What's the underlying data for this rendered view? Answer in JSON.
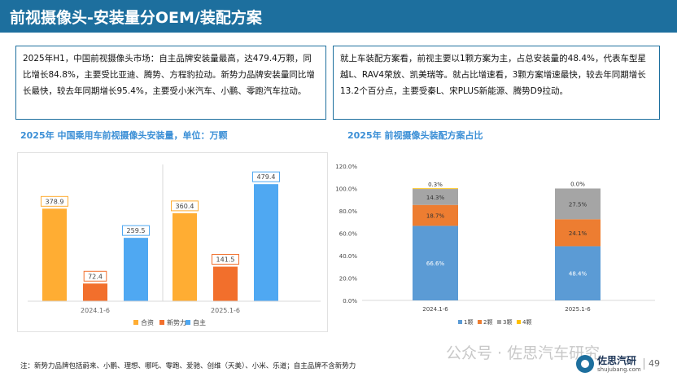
{
  "header": {
    "title": "前视摄像头-安装量分OEM/装配方案"
  },
  "summary_left": "2025年H1，中国前视摄像头市场：自主品牌安装量最高，达479.4万颗，同比增长84.8%，主要受比亚迪、腾势、方程豹拉动。新势力品牌安装量同比增长最快，较去年同期增长95.4%，主要受小米汽车、小鹏、零跑汽车拉动。",
  "summary_right": "就上车装配方案看，前视主要以1颗方案为主，占总安装量的48.4%，代表车型星越L、RAV4荣放、凯美瑞等。就占比增速看，3颗方案增速最快，较去年同期增长13.2个百分点，主要受秦L、宋PLUS新能源、腾势D9拉动。",
  "footnote": "注：新势力品牌包括蔚来、小鹏、理想、哪吒、零跑、爱驰、创维（天美）、小米、乐道；自主品牌不含新势力",
  "watermark": "公众号 · 佐思汽车研究",
  "logo": {
    "name": "佐思汽研",
    "url": "shujubang.com"
  },
  "page_number": "49",
  "colors": {
    "header": "#1d6f9e",
    "title_blue": "#3b8fd6",
    "orange_light": "#ffad33",
    "orange": "#f26f2c",
    "blue": "#4fa8f2",
    "stack1": "#5b9bd5",
    "stack2": "#ed7d31",
    "stack3": "#a5a5a5",
    "stack4": "#ffc000"
  },
  "chart_data": [
    {
      "type": "bar",
      "title": "2025年 中国乘用车前视摄像头安装量，单位：万颗",
      "categories": [
        "2024.1-6",
        "2025.1-6"
      ],
      "series": [
        {
          "name": "合资",
          "values": [
            378.9,
            360.4
          ]
        },
        {
          "name": "新势力",
          "values": [
            72.4,
            141.5
          ]
        },
        {
          "name": "自主",
          "values": [
            259.5,
            479.4
          ]
        }
      ],
      "legend": "bottom",
      "grid": false
    },
    {
      "type": "bar",
      "stacked": true,
      "title": "2025年 前视摄像头装配方案占比",
      "categories": [
        "2024.1-6",
        "2025.1-6"
      ],
      "series": [
        {
          "name": "1颗",
          "values": [
            66.6,
            48.4
          ]
        },
        {
          "name": "2颗",
          "values": [
            18.7,
            24.1
          ]
        },
        {
          "name": "3颗",
          "values": [
            14.3,
            27.5
          ]
        },
        {
          "name": "4颗",
          "values": [
            0.3,
            0.0
          ]
        }
      ],
      "ylim": [
        0,
        120
      ],
      "yticks": [
        "0.0%",
        "20.0%",
        "40.0%",
        "60.0%",
        "80.0%",
        "100.0%",
        "120.0%"
      ],
      "legend": "bottom",
      "grid": false
    }
  ]
}
